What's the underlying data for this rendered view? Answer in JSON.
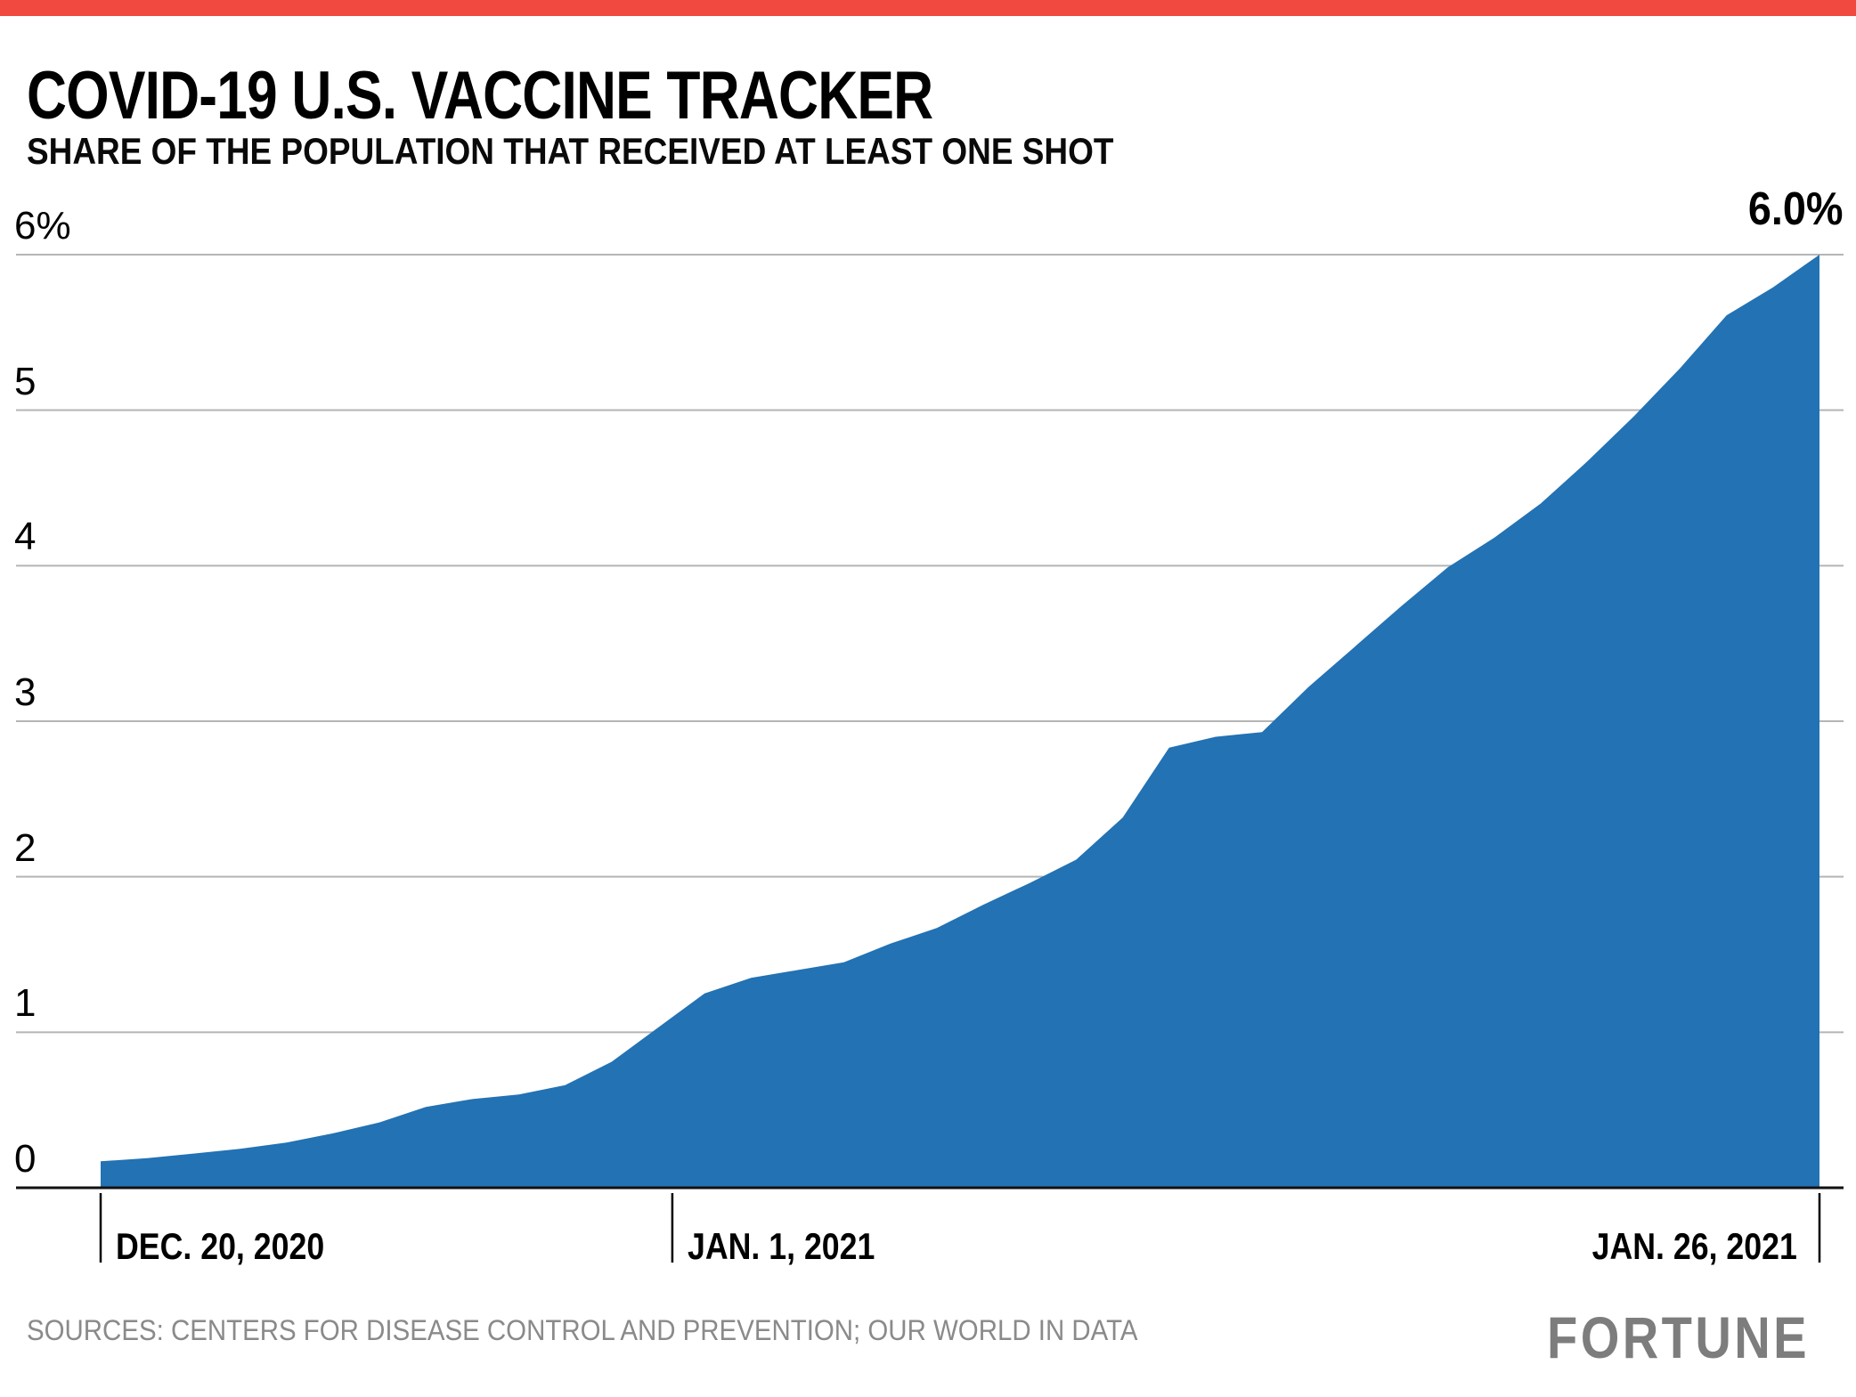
{
  "accent_bar_color": "#f1483f",
  "header": {
    "title": "COVID-19 U.S. VACCINE TRACKER",
    "subtitle": "SHARE OF THE POPULATION THAT RECEIVED AT LEAST ONE SHOT"
  },
  "chart_data": {
    "type": "area",
    "title": "COVID-19 U.S. VACCINE TRACKER",
    "subtitle": "SHARE OF THE POPULATION THAT RECEIVED AT LEAST ONE SHOT",
    "series_name": "Share of population with at least one shot",
    "unit": "%",
    "x": [
      "2020-12-20",
      "2020-12-21",
      "2020-12-22",
      "2020-12-23",
      "2020-12-24",
      "2020-12-25",
      "2020-12-26",
      "2020-12-27",
      "2020-12-28",
      "2020-12-29",
      "2020-12-30",
      "2020-12-31",
      "2021-01-01",
      "2021-01-02",
      "2021-01-03",
      "2021-01-04",
      "2021-01-05",
      "2021-01-06",
      "2021-01-07",
      "2021-01-08",
      "2021-01-09",
      "2021-01-10",
      "2021-01-11",
      "2021-01-12",
      "2021-01-13",
      "2021-01-14",
      "2021-01-15",
      "2021-01-16",
      "2021-01-17",
      "2021-01-18",
      "2021-01-19",
      "2021-01-20",
      "2021-01-21",
      "2021-01-22",
      "2021-01-23",
      "2021-01-24",
      "2021-01-25",
      "2021-01-26"
    ],
    "values": [
      0.17,
      0.19,
      0.22,
      0.25,
      0.29,
      0.35,
      0.42,
      0.52,
      0.57,
      0.6,
      0.66,
      0.81,
      1.03,
      1.25,
      1.35,
      1.4,
      1.45,
      1.57,
      1.67,
      1.82,
      1.96,
      2.11,
      2.38,
      2.83,
      2.9,
      2.93,
      3.22,
      3.48,
      3.74,
      3.99,
      4.18,
      4.4,
      4.67,
      4.96,
      5.27,
      5.61,
      5.79,
      6.0
    ],
    "ylim": [
      0,
      6
    ],
    "yticks": [
      0,
      1,
      2,
      3,
      4,
      5,
      6
    ],
    "ytick_labels": [
      "0",
      "1",
      "2",
      "3",
      "4",
      "5",
      "6%"
    ],
    "xticks": [
      {
        "date": "2020-12-20",
        "label": "DEC. 20, 2020",
        "frac": 0.0
      },
      {
        "date": "2021-01-01",
        "label": "JAN. 1, 2021",
        "frac": 0.3326
      },
      {
        "date": "2021-01-26",
        "label": "JAN. 26, 2021",
        "frac": 1.0
      }
    ],
    "end_label": "6.0%",
    "area_color": "#2272b4",
    "grid": true,
    "grid_color": "#b5b5b5",
    "axis_color": "#111111",
    "legend_position": "none"
  },
  "footer": {
    "sources": "SOURCES: CENTERS FOR DISEASE CONTROL AND PREVENTION; OUR WORLD IN DATA",
    "logo": "FORTUNE"
  }
}
